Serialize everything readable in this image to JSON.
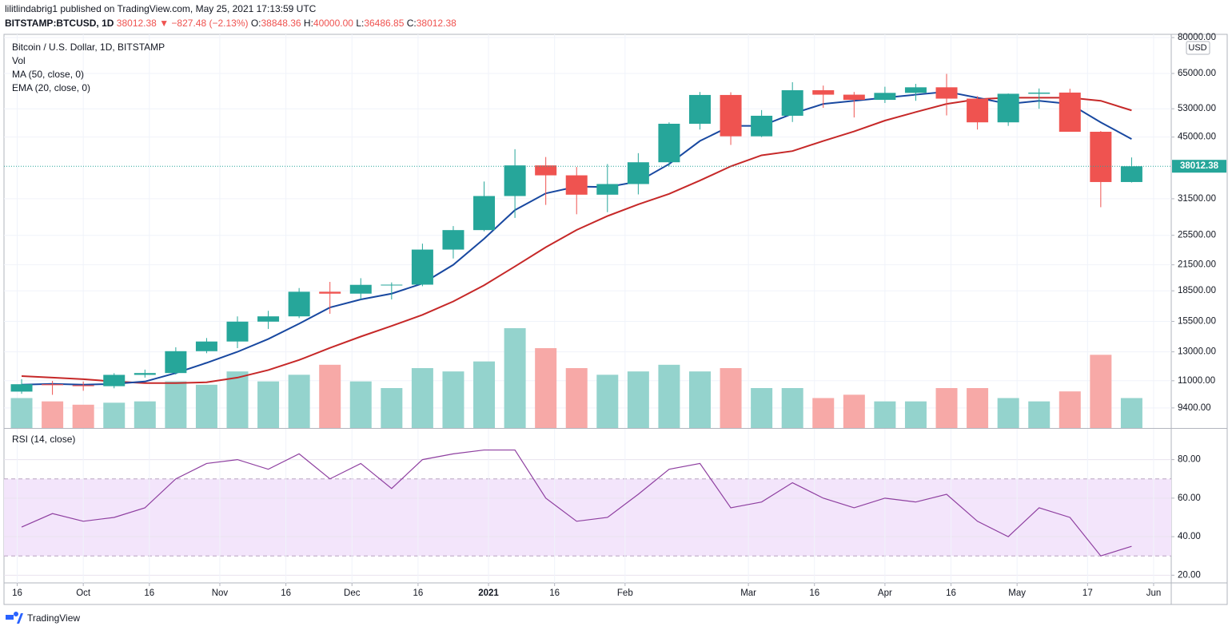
{
  "header": {
    "author_line": "lilitlindabrig1 published on TradingView.com, May 25, 2021 17:13:59 UTC",
    "symbol": "BITSTAMP:BTCUSD, 1D",
    "last": "38012.38",
    "change": "▼ −827.48 (−2.13%)",
    "ohlc": [
      {
        "label": "O:",
        "value": "38848.36"
      },
      {
        "label": "H:",
        "value": "40000.00"
      },
      {
        "label": "L:",
        "value": "36486.85"
      },
      {
        "label": "C:",
        "value": "38012.38"
      }
    ]
  },
  "chart_data": [
    {
      "type": "candlestick",
      "title": "Bitcoin / U.S. Dollar, 1D, BITSTAMP",
      "currency": "USD",
      "log_scale": true,
      "grid": true,
      "up_color": "#26a69a",
      "down_color": "#ef5350",
      "x": [
        "2020-09-14",
        "2020-09-21",
        "2020-09-28",
        "2020-10-05",
        "2020-10-12",
        "2020-10-19",
        "2020-10-26",
        "2020-11-02",
        "2020-11-09",
        "2020-11-16",
        "2020-11-23",
        "2020-11-30",
        "2020-12-07",
        "2020-12-14",
        "2020-12-21",
        "2020-12-28",
        "2021-01-04",
        "2021-01-11",
        "2021-01-18",
        "2021-01-25",
        "2021-02-01",
        "2021-02-08",
        "2021-02-15",
        "2021-02-22",
        "2021-03-01",
        "2021-03-08",
        "2021-03-15",
        "2021-03-22",
        "2021-03-29",
        "2021-04-05",
        "2021-04-12",
        "2021-04-19",
        "2021-04-26",
        "2021-05-03",
        "2021-05-10",
        "2021-05-17",
        "2021-05-24"
      ],
      "open": [
        10330,
        10780,
        10720,
        10660,
        11380,
        11500,
        13050,
        13800,
        15480,
        15960,
        18400,
        18200,
        19150,
        19170,
        23480,
        26280,
        32000,
        38200,
        36070,
        32250,
        34300,
        38900,
        48600,
        57400,
        45200,
        50900,
        59000,
        57500,
        55800,
        58100,
        60000,
        56200,
        49000,
        57800,
        58200,
        46400,
        34700
      ],
      "high": [
        11100,
        10990,
        10950,
        11490,
        11730,
        13350,
        14080,
        15960,
        16480,
        18800,
        19480,
        19900,
        19420,
        24300,
        26900,
        34800,
        41950,
        40100,
        37850,
        38500,
        41000,
        49000,
        58400,
        58300,
        52600,
        61800,
        60600,
        58400,
        60200,
        61200,
        64850,
        57000,
        57900,
        59600,
        59500,
        46600,
        40000
      ],
      "low": [
        10200,
        10140,
        10380,
        10530,
        11200,
        11400,
        12900,
        13280,
        14840,
        15800,
        16200,
        17600,
        17600,
        19000,
        22300,
        26100,
        28200,
        30400,
        28800,
        29150,
        32300,
        38000,
        47000,
        43000,
        45000,
        49100,
        53300,
        50400,
        54800,
        55500,
        51000,
        47000,
        48000,
        53000,
        46900,
        30000,
        34600
      ],
      "close": [
        10780,
        10720,
        10660,
        11380,
        11500,
        13050,
        13800,
        15480,
        15960,
        18400,
        18200,
        19150,
        19170,
        23480,
        26280,
        32000,
        38200,
        36070,
        32250,
        34300,
        38900,
        48600,
        57400,
        45200,
        50900,
        59000,
        57500,
        55800,
        58100,
        60000,
        56200,
        49000,
        57800,
        58200,
        46400,
        34700,
        38012.38
      ],
      "volume": {
        "name": "Vol",
        "up_color": "#94d3cd",
        "down_color": "#f7a9a7",
        "vlim": [
          0,
          180
        ],
        "values": [
          45,
          40,
          35,
          38,
          40,
          70,
          65,
          85,
          70,
          80,
          95,
          70,
          60,
          90,
          85,
          100,
          150,
          120,
          90,
          80,
          85,
          95,
          85,
          90,
          60,
          60,
          45,
          50,
          40,
          40,
          60,
          60,
          45,
          40,
          55,
          110,
          45
        ]
      },
      "series": [
        {
          "name": "MA (50, close, 0)",
          "color": "#c62828",
          "values": [
            11300,
            11200,
            11100,
            10950,
            10850,
            10850,
            10900,
            11200,
            11700,
            12400,
            13300,
            14200,
            15100,
            16100,
            17400,
            19100,
            21300,
            23800,
            26300,
            28500,
            30500,
            32400,
            35000,
            38000,
            40500,
            41500,
            44000,
            46500,
            49500,
            52000,
            54500,
            56000,
            56500,
            56500,
            56500,
            55500,
            52500
          ]
        },
        {
          "name": "EMA (20, close, 0)",
          "color": "#1848a0",
          "values": [
            10750,
            10800,
            10750,
            10800,
            10950,
            11500,
            12200,
            13000,
            14000,
            15300,
            16800,
            17600,
            18200,
            19300,
            21500,
            25000,
            29500,
            32500,
            33800,
            33700,
            34800,
            38500,
            44000,
            48000,
            48000,
            51500,
            54500,
            55500,
            56500,
            57500,
            58500,
            56500,
            54500,
            55500,
            54500,
            49000,
            44500
          ]
        }
      ],
      "xlim": [
        "2020-09-13",
        "2021-06-05"
      ],
      "ylim": [
        8370,
        81500
      ],
      "yticks": [
        {
          "value": 80000,
          "label": "80000.00"
        },
        {
          "value": 65000,
          "label": "65000.00"
        },
        {
          "value": 53000,
          "label": "53000.00"
        },
        {
          "value": 45000,
          "label": "45000.00"
        },
        {
          "value": 31500,
          "label": "31500.00"
        },
        {
          "value": 25500,
          "label": "25500.00"
        },
        {
          "value": 21500,
          "label": "21500.00"
        },
        {
          "value": 18500,
          "label": "18500.00"
        },
        {
          "value": 15500,
          "label": "15500.00"
        },
        {
          "value": 13000,
          "label": "13000.00"
        },
        {
          "value": 11000,
          "label": "11000.00"
        },
        {
          "value": 9400,
          "label": "9400.00"
        }
      ]
    },
    {
      "type": "line",
      "title": "RSI (14, close)",
      "color": "#8e3fa0",
      "band": [
        30,
        70
      ],
      "band_color": "#f3e5fb",
      "grid": true,
      "x": [
        "2020-09-14",
        "2020-09-21",
        "2020-09-28",
        "2020-10-05",
        "2020-10-12",
        "2020-10-19",
        "2020-10-26",
        "2020-11-02",
        "2020-11-09",
        "2020-11-16",
        "2020-11-23",
        "2020-11-30",
        "2020-12-07",
        "2020-12-14",
        "2020-12-21",
        "2020-12-28",
        "2021-01-04",
        "2021-01-11",
        "2021-01-18",
        "2021-01-25",
        "2021-02-01",
        "2021-02-08",
        "2021-02-15",
        "2021-02-22",
        "2021-03-01",
        "2021-03-08",
        "2021-03-15",
        "2021-03-22",
        "2021-03-29",
        "2021-04-05",
        "2021-04-12",
        "2021-04-19",
        "2021-04-26",
        "2021-05-03",
        "2021-05-10",
        "2021-05-17",
        "2021-05-24"
      ],
      "values": [
        45,
        52,
        48,
        50,
        55,
        70,
        78,
        80,
        75,
        83,
        70,
        78,
        65,
        80,
        83,
        85,
        85,
        60,
        48,
        50,
        62,
        75,
        78,
        55,
        58,
        68,
        60,
        55,
        60,
        58,
        62,
        48,
        40,
        55,
        50,
        30,
        35
      ],
      "xlim": [
        "2020-09-13",
        "2021-06-05"
      ],
      "ylim": [
        16,
        96
      ],
      "yticks": [
        {
          "value": 80,
          "label": "80.00"
        },
        {
          "value": 60,
          "label": "60.00"
        },
        {
          "value": 40,
          "label": "40.00"
        },
        {
          "value": 20,
          "label": "20.00"
        }
      ],
      "xticks": [
        {
          "value": "2020-09-16",
          "label": "16"
        },
        {
          "value": "2020-10-01",
          "label": "Oct"
        },
        {
          "value": "2020-10-16",
          "label": "16"
        },
        {
          "value": "2020-11-01",
          "label": "Nov"
        },
        {
          "value": "2020-11-16",
          "label": "16"
        },
        {
          "value": "2020-12-01",
          "label": "Dec"
        },
        {
          "value": "2020-12-16",
          "label": "16"
        },
        {
          "value": "2021-01-01",
          "label": "2021"
        },
        {
          "value": "2021-01-16",
          "label": "16"
        },
        {
          "value": "2021-02-01",
          "label": "Feb"
        },
        {
          "value": "2021-03-01",
          "label": "Mar"
        },
        {
          "value": "2021-03-16",
          "label": "16"
        },
        {
          "value": "2021-04-01",
          "label": "Apr"
        },
        {
          "value": "2021-04-16",
          "label": "16"
        },
        {
          "value": "2021-05-01",
          "label": "May"
        },
        {
          "value": "2021-05-17",
          "label": "17"
        },
        {
          "value": "2021-06-01",
          "label": "Jun"
        }
      ]
    }
  ],
  "footer": {
    "brand": "TradingView"
  }
}
